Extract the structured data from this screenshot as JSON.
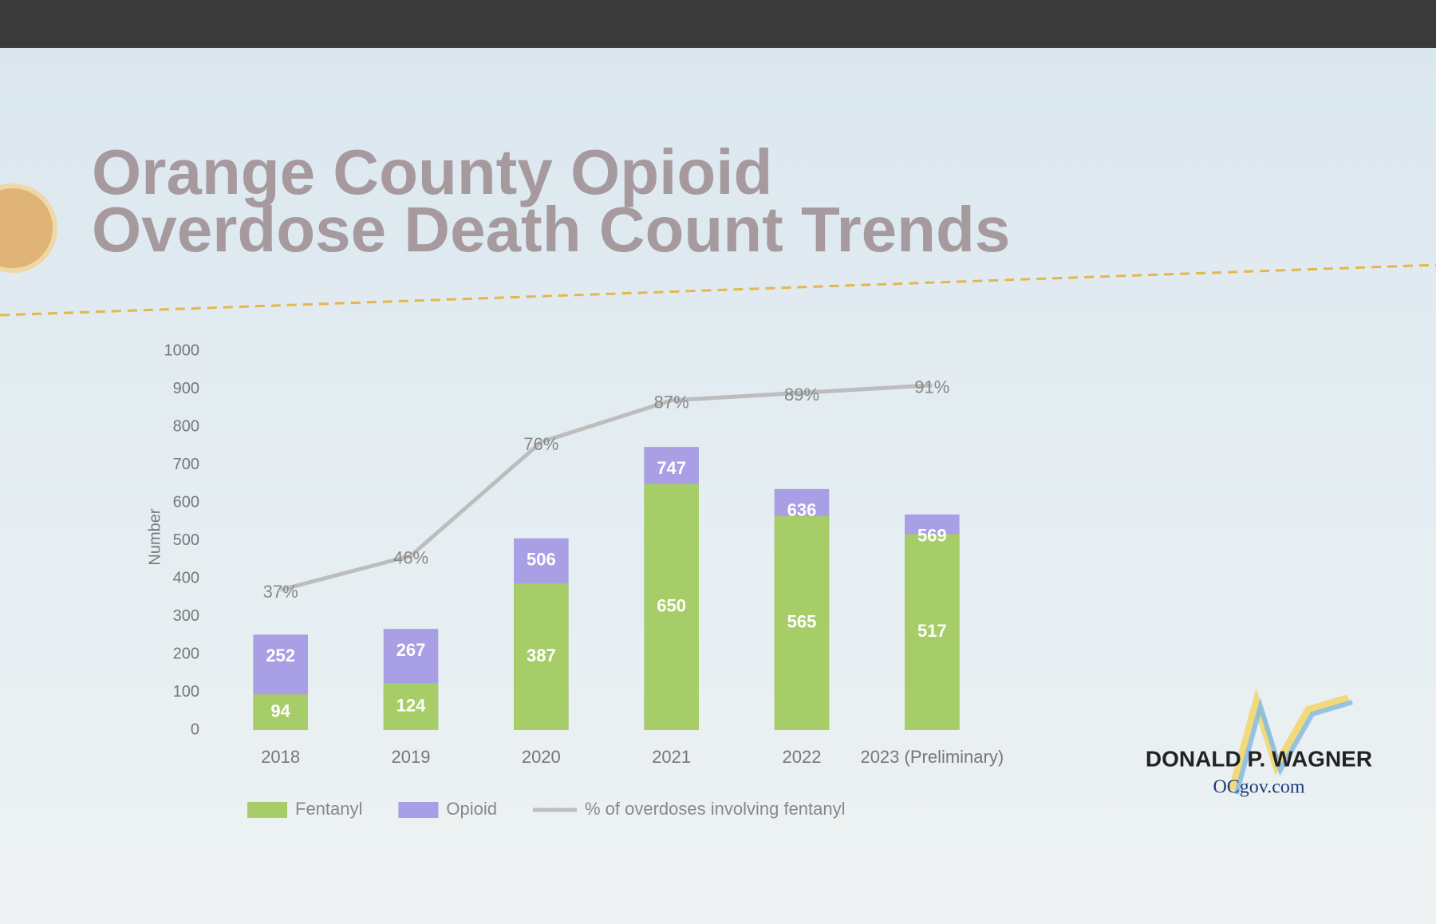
{
  "title": "Orange County Opioid Overdose Death Count Trends",
  "chart_data": {
    "type": "bar-line",
    "y_label": "Number",
    "categories": [
      "2018",
      "2019",
      "2020",
      "2021",
      "2022",
      "2023 (Preliminary)"
    ],
    "series": [
      {
        "name": "Opioid",
        "type": "bar",
        "color": "#a89fe4",
        "values": [
          252,
          267,
          506,
          747,
          636,
          569
        ]
      },
      {
        "name": "Fentanyl",
        "type": "bar",
        "color": "#a6cd68",
        "values": [
          94,
          124,
          387,
          650,
          565,
          517
        ]
      },
      {
        "name": "% of overdoses involving fentanyl",
        "type": "line",
        "axis": "y2",
        "color": "#bdbdbd",
        "values": [
          37,
          46,
          76,
          87,
          89,
          91
        ],
        "value_labels": [
          "37%",
          "46%",
          "76%",
          "87%",
          "89%",
          "91%"
        ]
      }
    ],
    "ylim": [
      0,
      1000
    ],
    "yticks": [
      0,
      100,
      200,
      300,
      400,
      500,
      600,
      700,
      800,
      900,
      1000
    ],
    "y2lim": [
      0,
      100
    ],
    "legend": [
      "Fentanyl",
      "Opioid",
      "% of overdoses involving fentanyl"
    ]
  },
  "logo": {
    "name": "DONALD P. WAGNER",
    "site": "OCgov.com"
  }
}
